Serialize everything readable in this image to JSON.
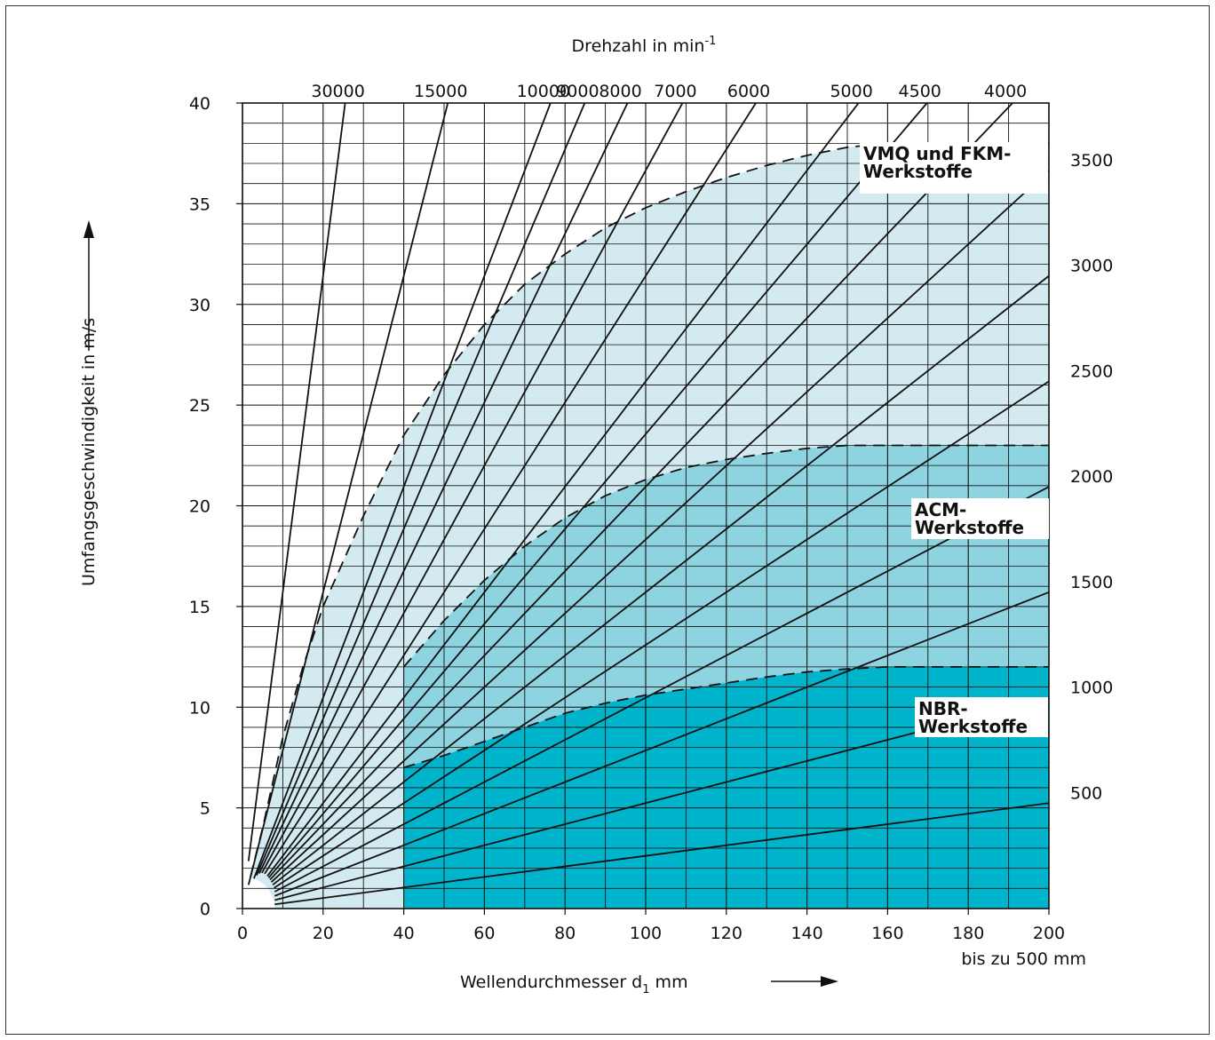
{
  "chart_data": {
    "type": "line",
    "title": "Drehzahl in min",
    "title_superscript": "-1",
    "xlabel_prefix": "Wellendurchmesser d",
    "xlabel_subscript": "1",
    "xlabel_suffix": " mm",
    "xnote": "bis zu 500 mm",
    "ylabel": "Umfangsgeschwindigkeit in m/s",
    "xlim": [
      0,
      200
    ],
    "ylim": [
      0,
      40
    ],
    "x_ticks": [
      0,
      20,
      40,
      60,
      80,
      100,
      120,
      140,
      160,
      180,
      200
    ],
    "y_ticks": [
      0,
      5,
      10,
      15,
      20,
      25,
      30,
      35,
      40
    ],
    "grid": true,
    "rpm_series": [
      30000,
      15000,
      10000,
      9000,
      8000,
      7000,
      6000,
      5000,
      4500,
      4000,
      3500,
      3000,
      2500,
      2000,
      1500,
      1000,
      500
    ],
    "rpm_top_labels": [
      "30000",
      "15000",
      "10000",
      "9000",
      "8000",
      "7000",
      "6000",
      "5000",
      "4500",
      "4000"
    ],
    "rpm_right_labels": [
      "3500",
      "3000",
      "2500",
      "2000",
      "1500",
      "1000",
      "500"
    ],
    "regions": [
      {
        "name": "VMQ und FKM-Werkstoffe",
        "label_lines": [
          "VMQ und FKM-",
          "Werkstoffe"
        ],
        "color": "#d3ebf0",
        "limit": 38,
        "boundary": [
          [
            2,
            1.6
          ],
          [
            5,
            4
          ],
          [
            10,
            8.5
          ],
          [
            15,
            12
          ],
          [
            20,
            15
          ],
          [
            30,
            19.5
          ],
          [
            40,
            23.5
          ],
          [
            50,
            26.5
          ],
          [
            60,
            29
          ],
          [
            70,
            31
          ],
          [
            80,
            32.5
          ],
          [
            90,
            33.8
          ],
          [
            100,
            34.8
          ],
          [
            110,
            35.6
          ],
          [
            120,
            36.3
          ],
          [
            130,
            36.9
          ],
          [
            140,
            37.4
          ],
          [
            150,
            37.8
          ],
          [
            160,
            38
          ],
          [
            200,
            38
          ]
        ]
      },
      {
        "name": "ACM-Werkstoffe",
        "label_lines": [
          "ACM-",
          "Werkstoffe"
        ],
        "color": "#8dd3e0",
        "limit": 23,
        "boundary": [
          [
            40,
            12
          ],
          [
            50,
            14.3
          ],
          [
            60,
            16.3
          ],
          [
            70,
            18
          ],
          [
            80,
            19.4
          ],
          [
            90,
            20.5
          ],
          [
            100,
            21.3
          ],
          [
            110,
            21.9
          ],
          [
            120,
            22.3
          ],
          [
            130,
            22.6
          ],
          [
            140,
            22.85
          ],
          [
            150,
            23
          ],
          [
            200,
            23
          ]
        ]
      },
      {
        "name": "NBR-Werkstoffe",
        "label_lines": [
          "NBR-",
          "Werkstoffe"
        ],
        "color": "#00b4cb",
        "limit": 12,
        "boundary": [
          [
            40,
            7
          ],
          [
            50,
            7.6
          ],
          [
            60,
            8.3
          ],
          [
            70,
            9
          ],
          [
            80,
            9.7
          ],
          [
            90,
            10.2
          ],
          [
            100,
            10.6
          ],
          [
            110,
            10.9
          ],
          [
            120,
            11.2
          ],
          [
            130,
            11.5
          ],
          [
            140,
            11.75
          ],
          [
            150,
            11.9
          ],
          [
            160,
            12
          ],
          [
            200,
            12
          ]
        ]
      }
    ]
  }
}
